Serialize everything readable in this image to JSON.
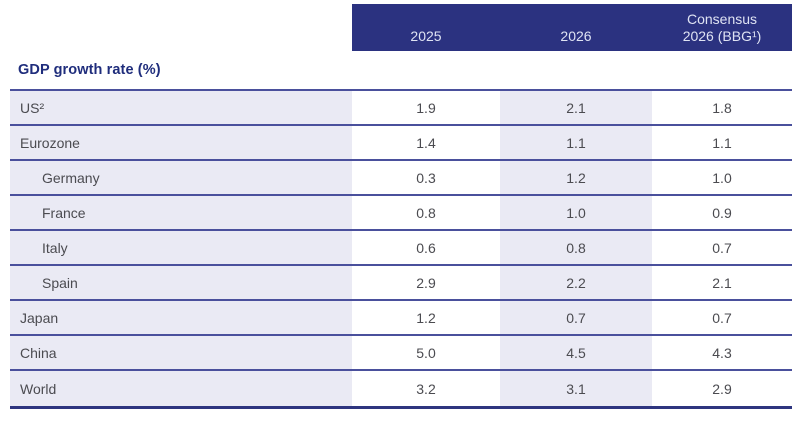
{
  "colors": {
    "header_bg": "#2b3280",
    "header_text": "#dfe3f3",
    "alt_column_bg": "#eaeaf4",
    "row_border": "#4a509c",
    "table_bottom_border": "#2e357f",
    "section_label_color": "#1f2d7c",
    "cell_text": "#4b4b50"
  },
  "header": {
    "col_2025": "2025",
    "col_2026": "2026",
    "col_consensus_line1": "Consensus",
    "col_consensus_line2": "2026 (BBG¹)"
  },
  "section_label": "GDP growth rate (%)",
  "chart_data": {
    "type": "table",
    "title": "GDP growth rate (%)",
    "columns": [
      "2025",
      "2026",
      "Consensus 2026 (BBG¹)"
    ],
    "rows": [
      {
        "label": "US²",
        "indent": false,
        "values": [
          "1.9",
          "2.1",
          "1.8"
        ]
      },
      {
        "label": "Eurozone",
        "indent": false,
        "values": [
          "1.4",
          "1.1",
          "1.1"
        ]
      },
      {
        "label": "Germany",
        "indent": true,
        "values": [
          "0.3",
          "1.2",
          "1.0"
        ]
      },
      {
        "label": "France",
        "indent": true,
        "values": [
          "0.8",
          "1.0",
          "0.9"
        ]
      },
      {
        "label": "Italy",
        "indent": true,
        "values": [
          "0.6",
          "0.8",
          "0.7"
        ]
      },
      {
        "label": "Spain",
        "indent": true,
        "values": [
          "2.9",
          "2.2",
          "2.1"
        ]
      },
      {
        "label": "Japan",
        "indent": false,
        "values": [
          "1.2",
          "0.7",
          "0.7"
        ]
      },
      {
        "label": "China",
        "indent": false,
        "values": [
          "5.0",
          "4.5",
          "4.3"
        ]
      },
      {
        "label": "World",
        "indent": false,
        "values": [
          "3.2",
          "3.1",
          "2.9"
        ]
      }
    ]
  }
}
